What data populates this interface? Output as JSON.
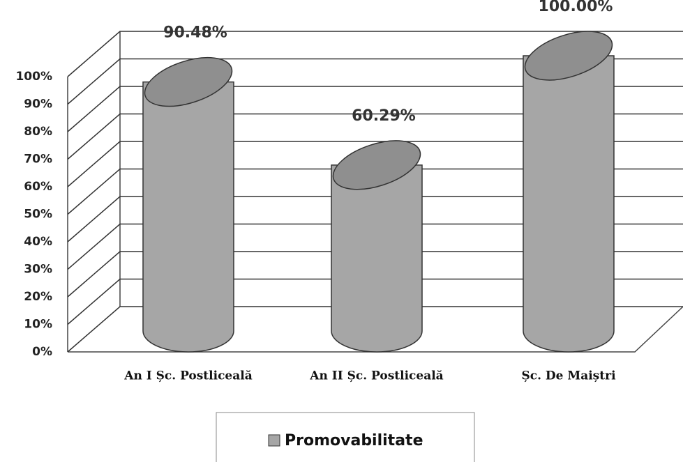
{
  "chart_data": {
    "type": "bar3d_cylinder",
    "categories": [
      "An I Șc. Postliceală",
      "An II Șc. Postliceală",
      "Șc. De Maiștri"
    ],
    "series": [
      {
        "name": "Promovabilitate",
        "color": "#a6a6a6",
        "values": [
          90.48,
          60.29,
          100.0
        ],
        "value_labels": [
          "90.48%",
          "60.29%",
          "100.00%"
        ]
      }
    ],
    "ylim": [
      0,
      100
    ],
    "yticks": [
      {
        "value": 0,
        "label": "0%"
      },
      {
        "value": 10,
        "label": "10%"
      },
      {
        "value": 20,
        "label": "20%"
      },
      {
        "value": 30,
        "label": "30%"
      },
      {
        "value": 40,
        "label": "40%"
      },
      {
        "value": 50,
        "label": "50%"
      },
      {
        "value": 60,
        "label": "60%"
      },
      {
        "value": 70,
        "label": "70%"
      },
      {
        "value": 80,
        "label": "80%"
      },
      {
        "value": 90,
        "label": "90%"
      },
      {
        "value": 100,
        "label": "100%"
      }
    ],
    "grid": true,
    "legend": "bottom"
  }
}
